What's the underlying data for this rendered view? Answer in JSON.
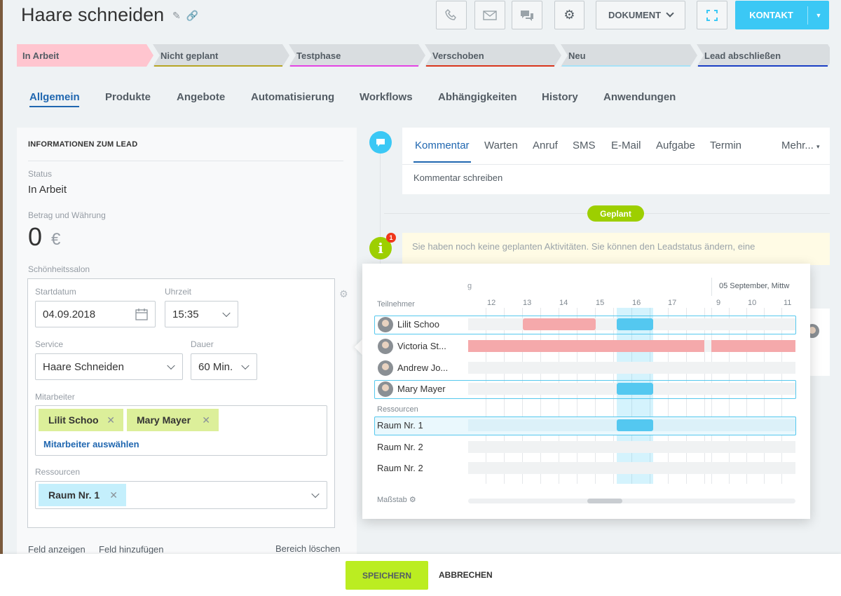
{
  "header": {
    "title": "Haare schneiden",
    "document_label": "DOKUMENT",
    "contact_label": "KONTAKT"
  },
  "stages": [
    {
      "label": "In Arbeit",
      "color": "#ffc5cf"
    },
    {
      "label": "Nicht geplant",
      "color": "#b7a524"
    },
    {
      "label": "Testphase",
      "color": "#e444e4"
    },
    {
      "label": "Verschoben",
      "color": "#d9361d"
    },
    {
      "label": "Neu",
      "color": "#a7e2f7"
    },
    {
      "label": "Lead abschließen",
      "color": "#1b3fc4"
    }
  ],
  "tabs": [
    "Allgemein",
    "Produkte",
    "Angebote",
    "Automatisierung",
    "Workflows",
    "Abhängigkeiten",
    "History",
    "Anwendungen"
  ],
  "lead": {
    "heading": "INFORMATIONEN ZUM LEAD",
    "status_label": "Status",
    "status_value": "In Arbeit",
    "amount_label": "Betrag und Währung",
    "amount_value": "0",
    "currency": "€",
    "section_label": "Schönheitssalon",
    "start_label": "Startdatum",
    "start_value": "04.09.2018",
    "time_label": "Uhrzeit",
    "time_value": "15:35",
    "service_label": "Service",
    "service_value": "Haare Schneiden",
    "duration_label": "Dauer",
    "duration_value": "60 Min.",
    "staff_label": "Mitarbeiter",
    "staff": [
      "Lilit Schoo",
      "Mary Mayer"
    ],
    "staff_select": "Mitarbeiter auswählen",
    "resources_label": "Ressourcen",
    "resources": [
      "Raum Nr. 1"
    ],
    "show_field": "Feld anzeigen",
    "add_field": "Feld hinzufügen",
    "delete_section": "Bereich löschen"
  },
  "activity": {
    "tabs": [
      "Kommentar",
      "Warten",
      "Anruf",
      "SMS",
      "E-Mail",
      "Aufgabe",
      "Termin"
    ],
    "more": "Mehr...",
    "placeholder": "Kommentar schreiben",
    "planned_badge": "Geplant",
    "info_text": "Sie haben noch keine geplanten Aktivitäten. Sie können den Leadstatus ändern, eine",
    "info_count": "1"
  },
  "planner": {
    "day_prev_fragment": "g",
    "next_day": "05 September, Mittw",
    "participants_label": "Teilnehmer",
    "hours_day1": [
      "12",
      "13",
      "14",
      "15",
      "16",
      "17"
    ],
    "hours_day2": [
      "9",
      "10",
      "11"
    ],
    "participants": [
      {
        "name": "Lilit Schoo",
        "selected": true
      },
      {
        "name": "Victoria St...",
        "selected": false
      },
      {
        "name": "Andrew Jo...",
        "selected": false
      },
      {
        "name": "Mary Mayer",
        "selected": true
      }
    ],
    "resources_label": "Ressourcen",
    "resources": [
      {
        "name": "Raum Nr. 1",
        "selected": true
      },
      {
        "name": "Raum Nr. 2",
        "selected": false
      },
      {
        "name": "Raum Nr. 2",
        "selected": false
      }
    ],
    "scale_label": "Maßstab"
  },
  "footer": {
    "save": "SPEICHERN",
    "cancel": "ABBRECHEN"
  },
  "colors": {
    "accent_blue": "#2067b0",
    "contact_button": "#3bc8f5",
    "save_button": "#bbed21",
    "planned_green": "#9dcf00",
    "slot_blue": "#54c8f0",
    "busy_red": "#f5a9ab"
  }
}
